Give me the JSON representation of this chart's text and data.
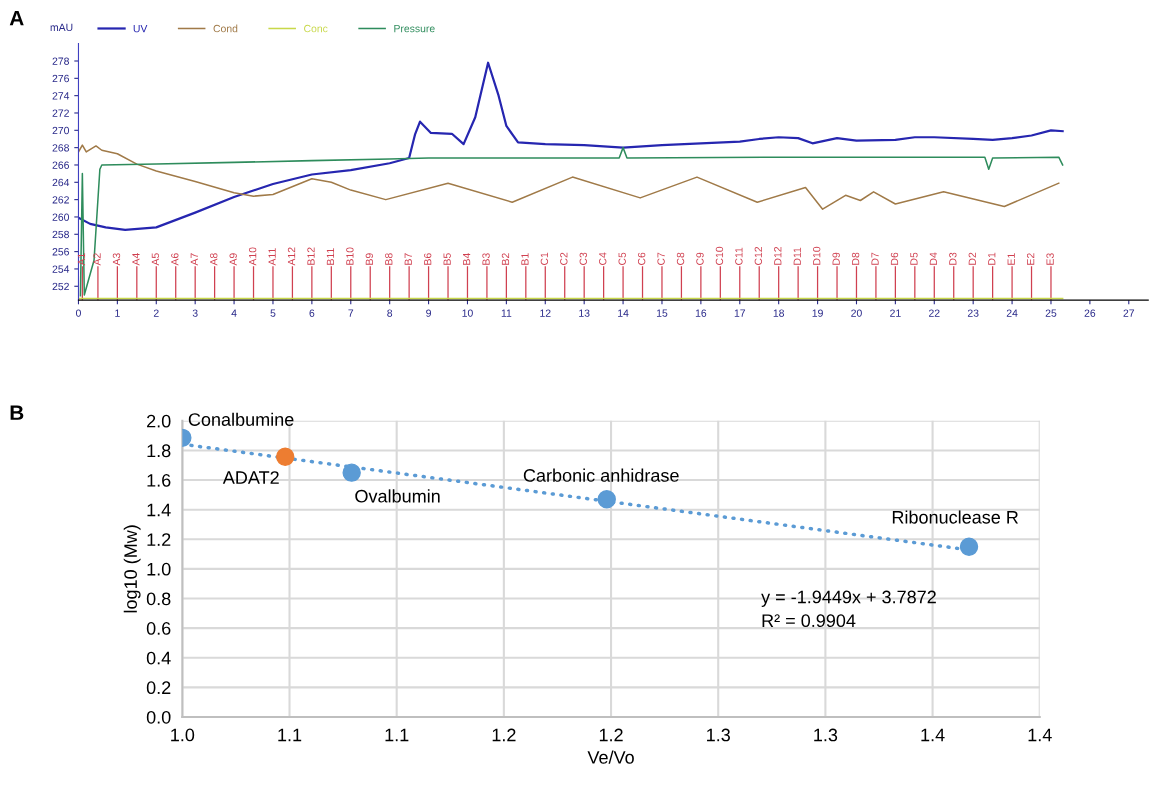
{
  "chart_data": [
    {
      "type": "line",
      "ylabel": "mAU",
      "annotations": [
        "A"
      ],
      "xlim": [
        0,
        27.5
      ],
      "ylim": [
        250.4,
        280
      ],
      "xticks": [
        0,
        1,
        2,
        3,
        4,
        5,
        6,
        7,
        8,
        9,
        10,
        11,
        12,
        13,
        14,
        15,
        16,
        17,
        18,
        19,
        20,
        21,
        22,
        23,
        24,
        25,
        26,
        27
      ],
      "yticks": [
        252,
        254,
        256,
        258,
        260,
        262,
        264,
        266,
        268,
        270,
        272,
        274,
        276,
        278
      ],
      "grid": false,
      "legend": "top left",
      "series": [
        {
          "name": "UV",
          "color": "#2626b0",
          "x": [
            0,
            0.3,
            0.7,
            1.2,
            2,
            3,
            4,
            5,
            6,
            7,
            8,
            8.5,
            8.65,
            8.78,
            9.06,
            9.6,
            9.9,
            10.2,
            10.53,
            10.8,
            11.0,
            11.3,
            12,
            13,
            14,
            15,
            16,
            17,
            17.5,
            18,
            18.5,
            18.87,
            19.5,
            20,
            21,
            21.5,
            22,
            23,
            23.5,
            24,
            24.5,
            25,
            25.3
          ],
          "values": [
            259.9,
            259.2,
            258.8,
            258.5,
            258.8,
            260.5,
            262.3,
            263.8,
            264.9,
            265.4,
            266.2,
            266.8,
            269.5,
            271.0,
            269.7,
            269.6,
            268.4,
            271.5,
            277.8,
            274.0,
            270.5,
            268.6,
            268.4,
            268.3,
            268.0,
            268.3,
            268.5,
            268.7,
            269.0,
            269.2,
            269.1,
            268.5,
            269.1,
            268.8,
            268.9,
            269.2,
            269.2,
            269.0,
            268.9,
            269.1,
            269.4,
            270.0,
            269.9
          ]
        },
        {
          "name": "Cond",
          "color": "#a07a48",
          "x": [
            0,
            0.1,
            0.2,
            0.45,
            0.6,
            1.0,
            1.5,
            2,
            3,
            4,
            4.5,
            5,
            6,
            6.5,
            7,
            7.9,
            9.5,
            11.15,
            12.7,
            14.44,
            15.9,
            17.45,
            18.69,
            19.13,
            19.72,
            20.1,
            20.44,
            21.0,
            22.24,
            23.8,
            25.2
          ],
          "values": [
            267.5,
            268.3,
            267.5,
            268.2,
            267.7,
            267.3,
            266.1,
            265.3,
            264.1,
            262.8,
            262.4,
            262.6,
            264.4,
            264.0,
            263.1,
            262.0,
            263.9,
            261.7,
            264.6,
            262.2,
            264.6,
            261.7,
            263.4,
            260.9,
            262.5,
            261.9,
            262.9,
            261.5,
            262.9,
            261.2,
            263.9
          ]
        },
        {
          "name": "Conc",
          "color": "#c8d84a",
          "x": [
            0,
            25.3
          ],
          "values": [
            250.6,
            250.6
          ]
        },
        {
          "name": "Pressure",
          "color": "#2e8c5c",
          "x": [
            0.05,
            0.1,
            0.15,
            0.4,
            0.55,
            0.6,
            2,
            4,
            6,
            8,
            9,
            13.9,
            14.0,
            14.1,
            18,
            23.3,
            23.4,
            23.5,
            25.2,
            25.3
          ],
          "values": [
            250.9,
            265.0,
            251.0,
            255.0,
            265.5,
            266.0,
            266.1,
            266.3,
            266.5,
            266.7,
            266.8,
            266.8,
            268.0,
            266.8,
            266.9,
            266.9,
            265.5,
            266.8,
            266.9,
            266.0
          ]
        }
      ],
      "ref_lines": [
        {
          "axis": "x",
          "value": 0.1,
          "label": "A1"
        },
        {
          "axis": "x",
          "value": 0.5,
          "label": "A2"
        },
        {
          "axis": "x",
          "value": 1,
          "label": "A3"
        },
        {
          "axis": "x",
          "value": 1.5,
          "label": "A4"
        },
        {
          "axis": "x",
          "value": 2,
          "label": "A5"
        },
        {
          "axis": "x",
          "value": 2.5,
          "label": "A6"
        },
        {
          "axis": "x",
          "value": 3,
          "label": "A7"
        },
        {
          "axis": "x",
          "value": 3.5,
          "label": "A8"
        },
        {
          "axis": "x",
          "value": 4,
          "label": "A9"
        },
        {
          "axis": "x",
          "value": 4.5,
          "label": "A10"
        },
        {
          "axis": "x",
          "value": 5,
          "label": "A11"
        },
        {
          "axis": "x",
          "value": 5.5,
          "label": "A12"
        },
        {
          "axis": "x",
          "value": 6,
          "label": "B12"
        },
        {
          "axis": "x",
          "value": 6.5,
          "label": "B11"
        },
        {
          "axis": "x",
          "value": 7,
          "label": "B10"
        },
        {
          "axis": "x",
          "value": 7.5,
          "label": "B9"
        },
        {
          "axis": "x",
          "value": 8,
          "label": "B8"
        },
        {
          "axis": "x",
          "value": 8.5,
          "label": "B7"
        },
        {
          "axis": "x",
          "value": 9,
          "label": "B6"
        },
        {
          "axis": "x",
          "value": 9.5,
          "label": "B5"
        },
        {
          "axis": "x",
          "value": 10,
          "label": "B4"
        },
        {
          "axis": "x",
          "value": 10.5,
          "label": "B3"
        },
        {
          "axis": "x",
          "value": 11,
          "label": "B2"
        },
        {
          "axis": "x",
          "value": 11.5,
          "label": "B1"
        },
        {
          "axis": "x",
          "value": 12,
          "label": "C1"
        },
        {
          "axis": "x",
          "value": 12.5,
          "label": "C2"
        },
        {
          "axis": "x",
          "value": 13,
          "label": "C3"
        },
        {
          "axis": "x",
          "value": 13.5,
          "label": "C4"
        },
        {
          "axis": "x",
          "value": 14,
          "label": "C5"
        },
        {
          "axis": "x",
          "value": 14.5,
          "label": "C6"
        },
        {
          "axis": "x",
          "value": 15,
          "label": "C7"
        },
        {
          "axis": "x",
          "value": 15.5,
          "label": "C8"
        },
        {
          "axis": "x",
          "value": 16,
          "label": "C9"
        },
        {
          "axis": "x",
          "value": 16.5,
          "label": "C10"
        },
        {
          "axis": "x",
          "value": 17,
          "label": "C11"
        },
        {
          "axis": "x",
          "value": 17.5,
          "label": "C12"
        },
        {
          "axis": "x",
          "value": 18,
          "label": "D12"
        },
        {
          "axis": "x",
          "value": 18.5,
          "label": "D11"
        },
        {
          "axis": "x",
          "value": 19,
          "label": "D10"
        },
        {
          "axis": "x",
          "value": 19.5,
          "label": "D9"
        },
        {
          "axis": "x",
          "value": 20,
          "label": "D8"
        },
        {
          "axis": "x",
          "value": 20.5,
          "label": "D7"
        },
        {
          "axis": "x",
          "value": 21,
          "label": "D6"
        },
        {
          "axis": "x",
          "value": 21.5,
          "label": "D5"
        },
        {
          "axis": "x",
          "value": 22,
          "label": "D4"
        },
        {
          "axis": "x",
          "value": 22.5,
          "label": "D3"
        },
        {
          "axis": "x",
          "value": 23,
          "label": "D2"
        },
        {
          "axis": "x",
          "value": 23.5,
          "label": "D1"
        },
        {
          "axis": "x",
          "value": 24,
          "label": "E1"
        },
        {
          "axis": "x",
          "value": 24.5,
          "label": "E2"
        },
        {
          "axis": "x",
          "value": 25,
          "label": "E3"
        }
      ]
    },
    {
      "type": "scatter",
      "xlabel": "Ve/Vo",
      "ylabel": "log10 (Mw)",
      "xlim": [
        1.0,
        1.4
      ],
      "ylim": [
        0,
        2.0
      ],
      "xticks": [
        {
          "value": 1.0,
          "label": "1.0"
        },
        {
          "value": 1.05,
          "label": "1.1"
        },
        {
          "value": 1.1,
          "label": "1.1"
        },
        {
          "value": 1.15,
          "label": "1.2"
        },
        {
          "value": 1.2,
          "label": "1.2"
        },
        {
          "value": 1.25,
          "label": "1.3"
        },
        {
          "value": 1.3,
          "label": "1.3"
        },
        {
          "value": 1.35,
          "label": "1.4"
        },
        {
          "value": 1.4,
          "label": "1.4"
        }
      ],
      "yticks": [
        {
          "value": 0,
          "label": "0.0"
        },
        {
          "value": 0.2,
          "label": "0.2"
        },
        {
          "value": 0.4,
          "label": "0.4"
        },
        {
          "value": 0.6,
          "label": "0.6"
        },
        {
          "value": 0.8,
          "label": "0.8"
        },
        {
          "value": 1.0,
          "label": "1.0"
        },
        {
          "value": 1.2,
          "label": "1.2"
        },
        {
          "value": 1.4,
          "label": "1.4"
        },
        {
          "value": 1.6,
          "label": "1.6"
        },
        {
          "value": 1.8,
          "label": "1.8"
        },
        {
          "value": 2.0,
          "label": "2.0"
        }
      ],
      "grid": true,
      "marker": "circle",
      "series": [
        {
          "type": "line",
          "line_style": "dotted",
          "marker": "none",
          "color": "#5b9bd5",
          "x": [
            1.0,
            1.363
          ],
          "values": [
            1.842,
            1.136
          ]
        },
        {
          "color": "#5b9bd5",
          "x": [
            1.0,
            1.079,
            1.198,
            1.367
          ],
          "values": [
            1.885,
            1.65,
            1.47,
            1.15
          ]
        },
        {
          "color": "#ed7d31",
          "x": [
            1.048
          ],
          "values": [
            1.757
          ]
        }
      ],
      "annotations": [
        "B",
        {
          "text": "Conalbumine",
          "x": 1.0,
          "y": 1.885
        },
        {
          "text": "ADAT2",
          "x": 1.048,
          "y": 1.757
        },
        {
          "text": "Ovalbumin",
          "x": 1.079,
          "y": 1.65
        },
        {
          "text": "Carbonic anhidrase",
          "x": 1.198,
          "y": 1.47
        },
        {
          "text": "Ribonuclease R",
          "x": 1.367,
          "y": 1.15
        },
        "y = -1.9449x + 3.7872",
        "R² = 0.9904"
      ]
    }
  ]
}
